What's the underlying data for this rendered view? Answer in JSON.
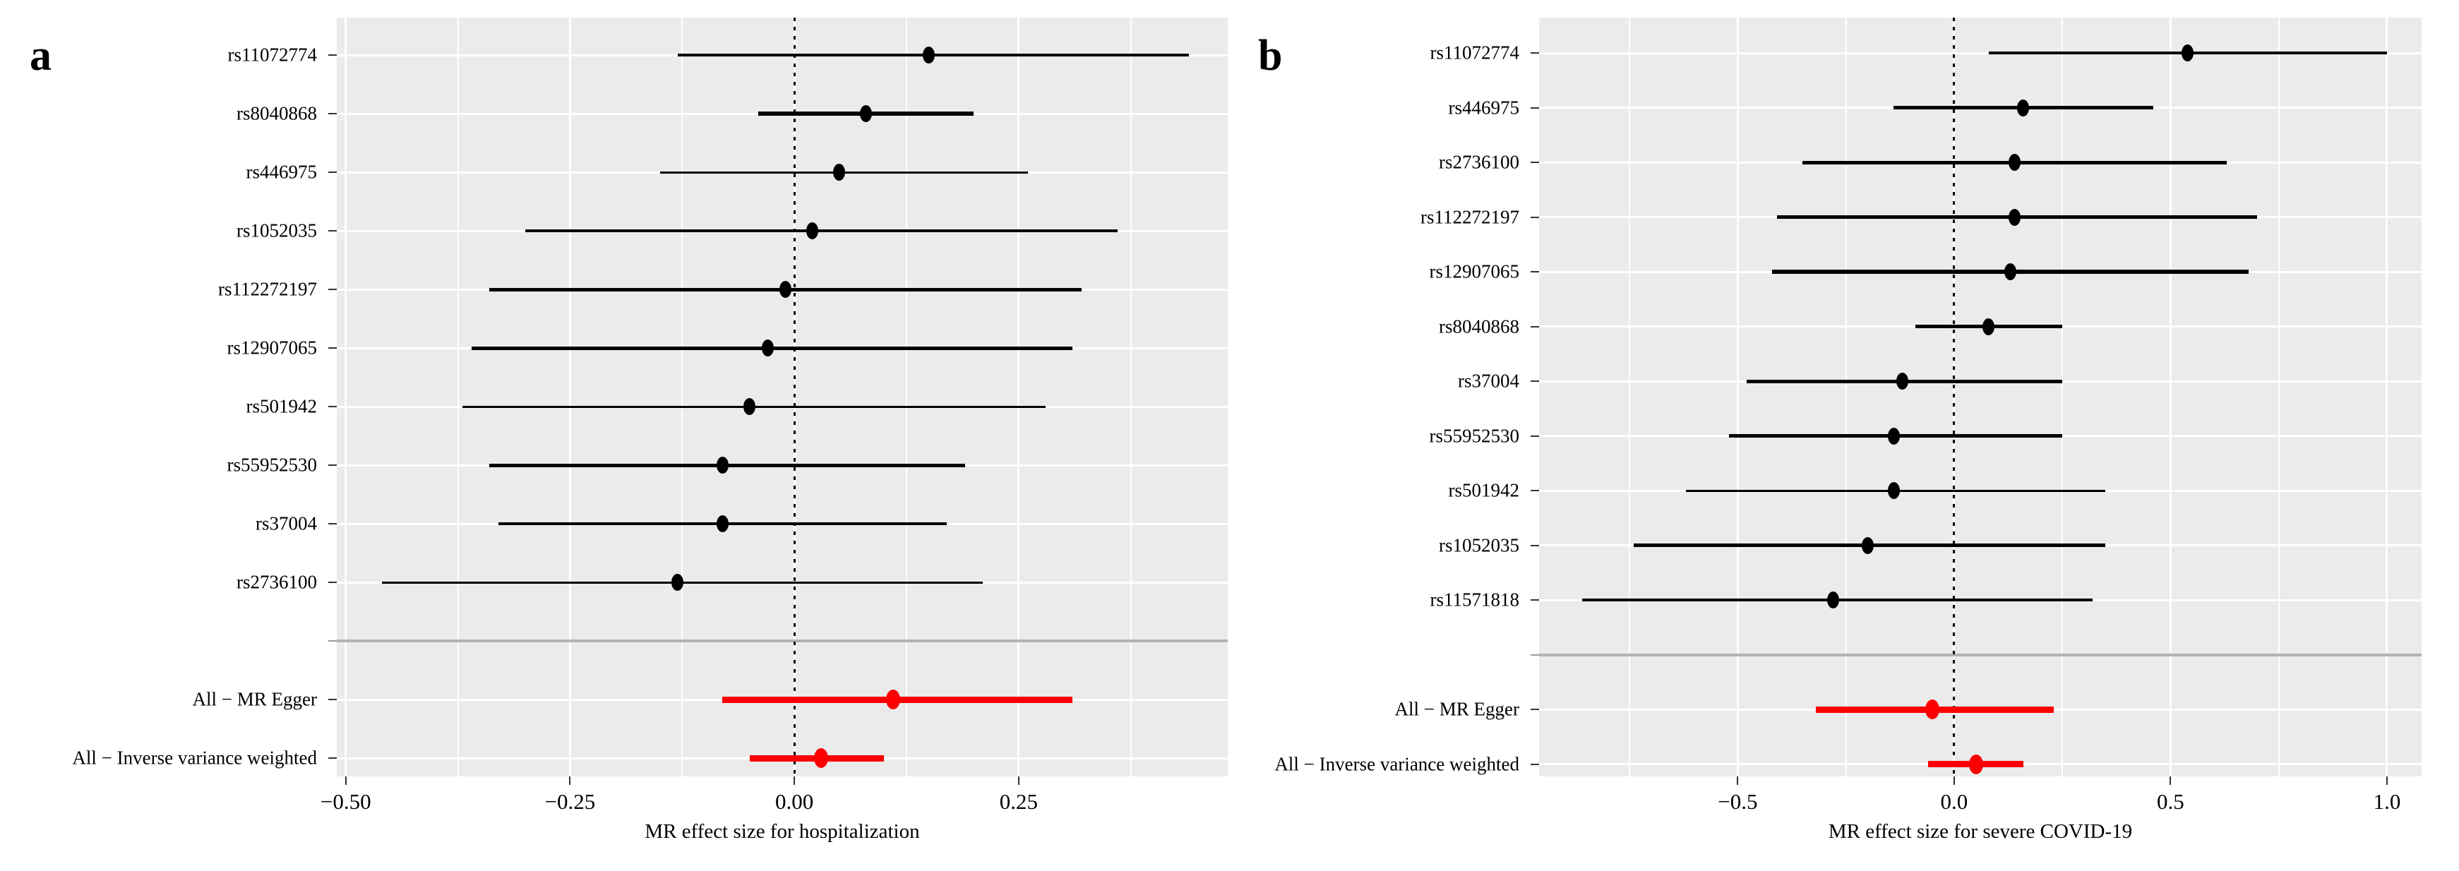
{
  "figure_title": "",
  "colors": {
    "panel_background": "#ebebeb",
    "gridline": "#ffffff",
    "separator_line": "#b3b3b3",
    "snp_color": "#000000",
    "summary_color": "#fa0000",
    "zero_line": "#000000"
  },
  "chart_data": [
    {
      "type": "scatter",
      "variant": "forest-plot",
      "panel_label": "a",
      "xlabel": "MR effect size for hospitalization",
      "x_axis": {
        "ticks": [
          -0.5,
          -0.25,
          0,
          0.25
        ],
        "labels": [
          "−0.50",
          "−0.25",
          "0.00",
          "0.25"
        ],
        "minor_step": 0.125,
        "xlim": [
          -0.51,
          0.483
        ]
      },
      "zero_reference_line": 0,
      "grid": true,
      "legend": "none",
      "rows": [
        {
          "kind": "snp",
          "label": "rs11072774",
          "est": 0.15,
          "lo": -0.13,
          "hi": 0.44,
          "lw": 4
        },
        {
          "kind": "snp",
          "label": "rs8040868",
          "est": 0.08,
          "lo": -0.04,
          "hi": 0.2,
          "lw": 6
        },
        {
          "kind": "snp",
          "label": "rs446975",
          "est": 0.05,
          "lo": -0.15,
          "hi": 0.26,
          "lw": 3
        },
        {
          "kind": "snp",
          "label": "rs1052035",
          "est": 0.02,
          "lo": -0.3,
          "hi": 0.36,
          "lw": 4
        },
        {
          "kind": "snp",
          "label": "rs112272197",
          "est": -0.01,
          "lo": -0.34,
          "hi": 0.32,
          "lw": 5
        },
        {
          "kind": "snp",
          "label": "rs12907065",
          "est": -0.03,
          "lo": -0.36,
          "hi": 0.31,
          "lw": 5
        },
        {
          "kind": "snp",
          "label": "rs501942",
          "est": -0.05,
          "lo": -0.37,
          "hi": 0.28,
          "lw": 3
        },
        {
          "kind": "snp",
          "label": "rs55952530",
          "est": -0.08,
          "lo": -0.34,
          "hi": 0.19,
          "lw": 5
        },
        {
          "kind": "snp",
          "label": "rs37004",
          "est": -0.08,
          "lo": -0.33,
          "hi": 0.17,
          "lw": 4
        },
        {
          "kind": "snp",
          "label": "rs2736100",
          "est": -0.13,
          "lo": -0.46,
          "hi": 0.21,
          "lw": 3
        },
        {
          "kind": "separator",
          "label": ""
        },
        {
          "kind": "summary",
          "label": "All − MR Egger",
          "est": 0.11,
          "lo": -0.08,
          "hi": 0.31,
          "lw": 9
        },
        {
          "kind": "summary",
          "label": "All − Inverse variance weighted",
          "est": 0.03,
          "lo": -0.05,
          "hi": 0.1,
          "lw": 9
        }
      ]
    },
    {
      "type": "scatter",
      "variant": "forest-plot",
      "panel_label": "b",
      "xlabel": "MR effect size for severe COVID-19",
      "x_axis": {
        "ticks": [
          -0.5,
          0,
          0.5,
          1.0
        ],
        "labels": [
          "−0.5",
          "0.0",
          "0.5",
          "1.0"
        ],
        "minor_step": 0.25,
        "xlim": [
          -0.959,
          1.08
        ]
      },
      "zero_reference_line": 0,
      "grid": true,
      "legend": "none",
      "rows": [
        {
          "kind": "snp",
          "label": "rs11072774",
          "est": 0.54,
          "lo": 0.08,
          "hi": 1.0,
          "lw": 4
        },
        {
          "kind": "snp",
          "label": "rs446975",
          "est": 0.16,
          "lo": -0.14,
          "hi": 0.46,
          "lw": 5
        },
        {
          "kind": "snp",
          "label": "rs2736100",
          "est": 0.14,
          "lo": -0.35,
          "hi": 0.63,
          "lw": 5
        },
        {
          "kind": "snp",
          "label": "rs112272197",
          "est": 0.14,
          "lo": -0.41,
          "hi": 0.7,
          "lw": 5
        },
        {
          "kind": "snp",
          "label": "rs12907065",
          "est": 0.13,
          "lo": -0.42,
          "hi": 0.68,
          "lw": 6
        },
        {
          "kind": "snp",
          "label": "rs8040868",
          "est": 0.08,
          "lo": -0.09,
          "hi": 0.25,
          "lw": 5
        },
        {
          "kind": "snp",
          "label": "rs37004",
          "est": -0.12,
          "lo": -0.48,
          "hi": 0.25,
          "lw": 5
        },
        {
          "kind": "snp",
          "label": "rs55952530",
          "est": -0.14,
          "lo": -0.52,
          "hi": 0.25,
          "lw": 5
        },
        {
          "kind": "snp",
          "label": "rs501942",
          "est": -0.14,
          "lo": -0.62,
          "hi": 0.35,
          "lw": 3
        },
        {
          "kind": "snp",
          "label": "rs1052035",
          "est": -0.2,
          "lo": -0.74,
          "hi": 0.35,
          "lw": 5
        },
        {
          "kind": "snp",
          "label": "rs11571818",
          "est": -0.28,
          "lo": -0.86,
          "hi": 0.32,
          "lw": 4
        },
        {
          "kind": "separator",
          "label": ""
        },
        {
          "kind": "summary",
          "label": "All − MR Egger",
          "est": -0.05,
          "lo": -0.32,
          "hi": 0.23,
          "lw": 9
        },
        {
          "kind": "summary",
          "label": "All − Inverse variance weighted",
          "est": 0.05,
          "lo": -0.06,
          "hi": 0.16,
          "lw": 9
        }
      ]
    }
  ]
}
